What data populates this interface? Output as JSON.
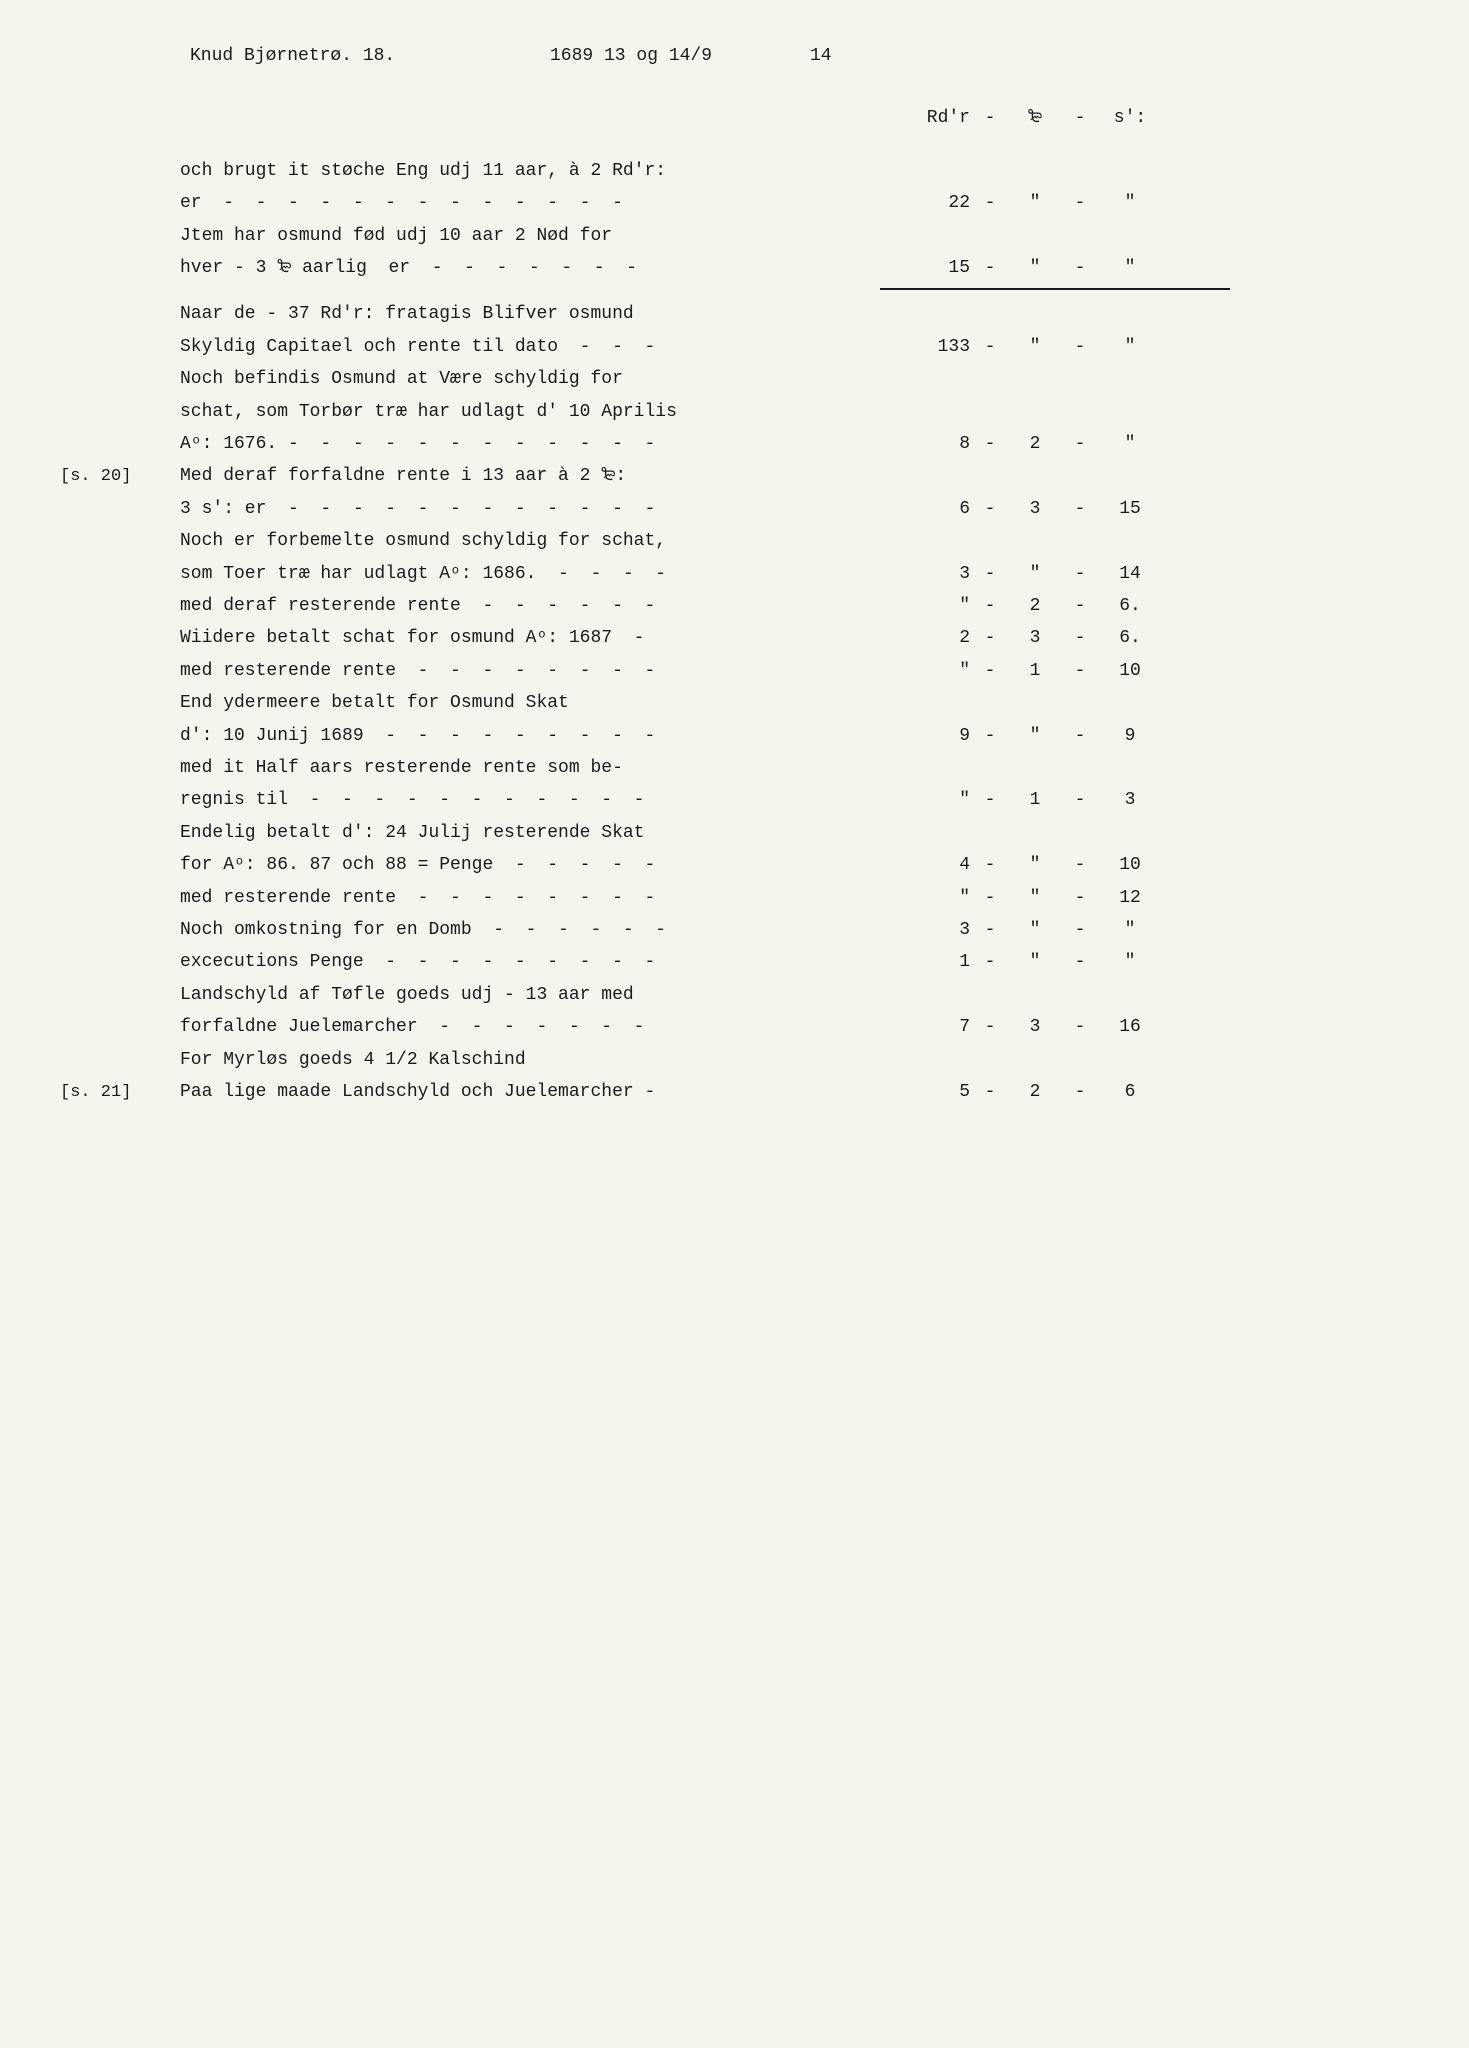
{
  "header": {
    "name": "Knud Bjørnetrø. 18.",
    "date": "1689 13 og 14/9",
    "page_number": "14"
  },
  "column_headers": {
    "rd": "Rd'r",
    "sep1": "-",
    "mark": "₻",
    "sep2": "-",
    "s": "s':"
  },
  "lines": [
    {
      "margin": "",
      "text": "och brugt it støche Eng udj 11 aar, à 2 Rd'r:",
      "rd": "",
      "sep1": "",
      "mark": "",
      "sep2": "",
      "s": ""
    },
    {
      "margin": "",
      "text": "er  -  -  -  -  -  -  -  -  -  -  -  -  -",
      "rd": "22",
      "sep1": "-",
      "mark": "\"",
      "sep2": "-",
      "s": "\""
    },
    {
      "margin": "",
      "text": "Jtem har osmund fød udj 10 aar 2 Nød for",
      "rd": "",
      "sep1": "",
      "mark": "",
      "sep2": "",
      "s": ""
    },
    {
      "margin": "",
      "text": "hver - 3 ₻ aarlig  er  -  -  -  -  -  -  -",
      "rd": "15",
      "sep1": "-",
      "mark": "\"",
      "sep2": "-",
      "s": "\""
    },
    {
      "underline": true
    },
    {
      "margin": "",
      "text": "Naar de - 37 Rd'r: fratagis Blifver osmund",
      "rd": "",
      "sep1": "",
      "mark": "",
      "sep2": "",
      "s": ""
    },
    {
      "margin": "",
      "text": "Skyldig Capitael och rente til dato  -  -  -",
      "rd": "133",
      "sep1": "-",
      "mark": "\"",
      "sep2": "-",
      "s": "\""
    },
    {
      "margin": "",
      "text": "Noch befindis Osmund at Være schyldig for",
      "rd": "",
      "sep1": "",
      "mark": "",
      "sep2": "",
      "s": ""
    },
    {
      "margin": "",
      "text": "schat, som Torbør træ har udlagt d' 10 Aprilis",
      "rd": "",
      "sep1": "",
      "mark": "",
      "sep2": "",
      "s": ""
    },
    {
      "margin": "",
      "text": "Aᵒ: 1676. -  -  -  -  -  -  -  -  -  -  -  -",
      "rd": "8",
      "sep1": "-",
      "mark": "2",
      "sep2": "-",
      "s": "\""
    },
    {
      "margin": "[s. 20]",
      "text": "Med deraf forfaldne rente i 13 aar à 2 ₻:",
      "rd": "",
      "sep1": "",
      "mark": "",
      "sep2": "",
      "s": ""
    },
    {
      "margin": "",
      "text": "3 s': er  -  -  -  -  -  -  -  -  -  -  -  -",
      "rd": "6",
      "sep1": "-",
      "mark": "3",
      "sep2": "-",
      "s": "15"
    },
    {
      "margin": "",
      "text": "Noch er forbemelte osmund schyldig for schat,",
      "rd": "",
      "sep1": "",
      "mark": "",
      "sep2": "",
      "s": ""
    },
    {
      "margin": "",
      "text": "som Toer træ har udlagt Aᵒ: 1686.  -  -  -  -",
      "rd": "3",
      "sep1": "-",
      "mark": "\"",
      "sep2": "-",
      "s": "14"
    },
    {
      "margin": "",
      "text": "med deraf resterende rente  -  -  -  -  -  -",
      "rd": "\"",
      "sep1": "-",
      "mark": "2",
      "sep2": "-",
      "s": "6."
    },
    {
      "margin": "",
      "text": "Wiidere betalt schat for osmund Aᵒ: 1687  -",
      "rd": "2",
      "sep1": "-",
      "mark": "3",
      "sep2": "-",
      "s": "6."
    },
    {
      "margin": "",
      "text": "med resterende rente  -  -  -  -  -  -  -  -",
      "rd": "\"",
      "sep1": "-",
      "mark": "1",
      "sep2": "-",
      "s": "10"
    },
    {
      "margin": "",
      "text": "End ydermeere betalt for Osmund Skat",
      "rd": "",
      "sep1": "",
      "mark": "",
      "sep2": "",
      "s": ""
    },
    {
      "margin": "",
      "text": "d': 10 Junij 1689  -  -  -  -  -  -  -  -  -",
      "rd": "9",
      "sep1": "-",
      "mark": "\"",
      "sep2": "-",
      "s": "9"
    },
    {
      "margin": "",
      "text": "med it Half aars resterende rente som be-",
      "rd": "",
      "sep1": "",
      "mark": "",
      "sep2": "",
      "s": ""
    },
    {
      "margin": "",
      "text": "regnis til  -  -  -  -  -  -  -  -  -  -  -",
      "rd": "\"",
      "sep1": "-",
      "mark": "1",
      "sep2": "-",
      "s": "3"
    },
    {
      "margin": "",
      "text": "Endelig betalt d': 24 Julij resterende Skat",
      "rd": "",
      "sep1": "",
      "mark": "",
      "sep2": "",
      "s": ""
    },
    {
      "margin": "",
      "text": "for Aᵒ: 86. 87 och 88 = Penge  -  -  -  -  -",
      "rd": "4",
      "sep1": "-",
      "mark": "\"",
      "sep2": "-",
      "s": "10"
    },
    {
      "margin": "",
      "text": "med resterende rente  -  -  -  -  -  -  -  -",
      "rd": "\"",
      "sep1": "-",
      "mark": "\"",
      "sep2": "-",
      "s": "12"
    },
    {
      "margin": "",
      "text": "Noch omkostning for en Domb  -  -  -  -  -  -",
      "rd": "3",
      "sep1": "-",
      "mark": "\"",
      "sep2": "-",
      "s": "\""
    },
    {
      "margin": "",
      "text": "excecutions Penge  -  -  -  -  -  -  -  -  -",
      "rd": "1",
      "sep1": "-",
      "mark": "\"",
      "sep2": "-",
      "s": "\""
    },
    {
      "margin": "",
      "text": "Landschyld af Tøfle goeds udj - 13 aar med",
      "rd": "",
      "sep1": "",
      "mark": "",
      "sep2": "",
      "s": ""
    },
    {
      "margin": "",
      "text": "forfaldne Juelemarcher  -  -  -  -  -  -  -",
      "rd": "7",
      "sep1": "-",
      "mark": "3",
      "sep2": "-",
      "s": "16"
    },
    {
      "margin": "",
      "text": "For Myrløs goeds 4 1/2 Kalschind",
      "rd": "",
      "sep1": "",
      "mark": "",
      "sep2": "",
      "s": ""
    },
    {
      "margin": "[s. 21]",
      "text": "Paa lige maade Landschyld och Juelemarcher -",
      "rd": "5",
      "sep1": "-",
      "mark": "2",
      "sep2": "-",
      "s": "6"
    }
  ]
}
